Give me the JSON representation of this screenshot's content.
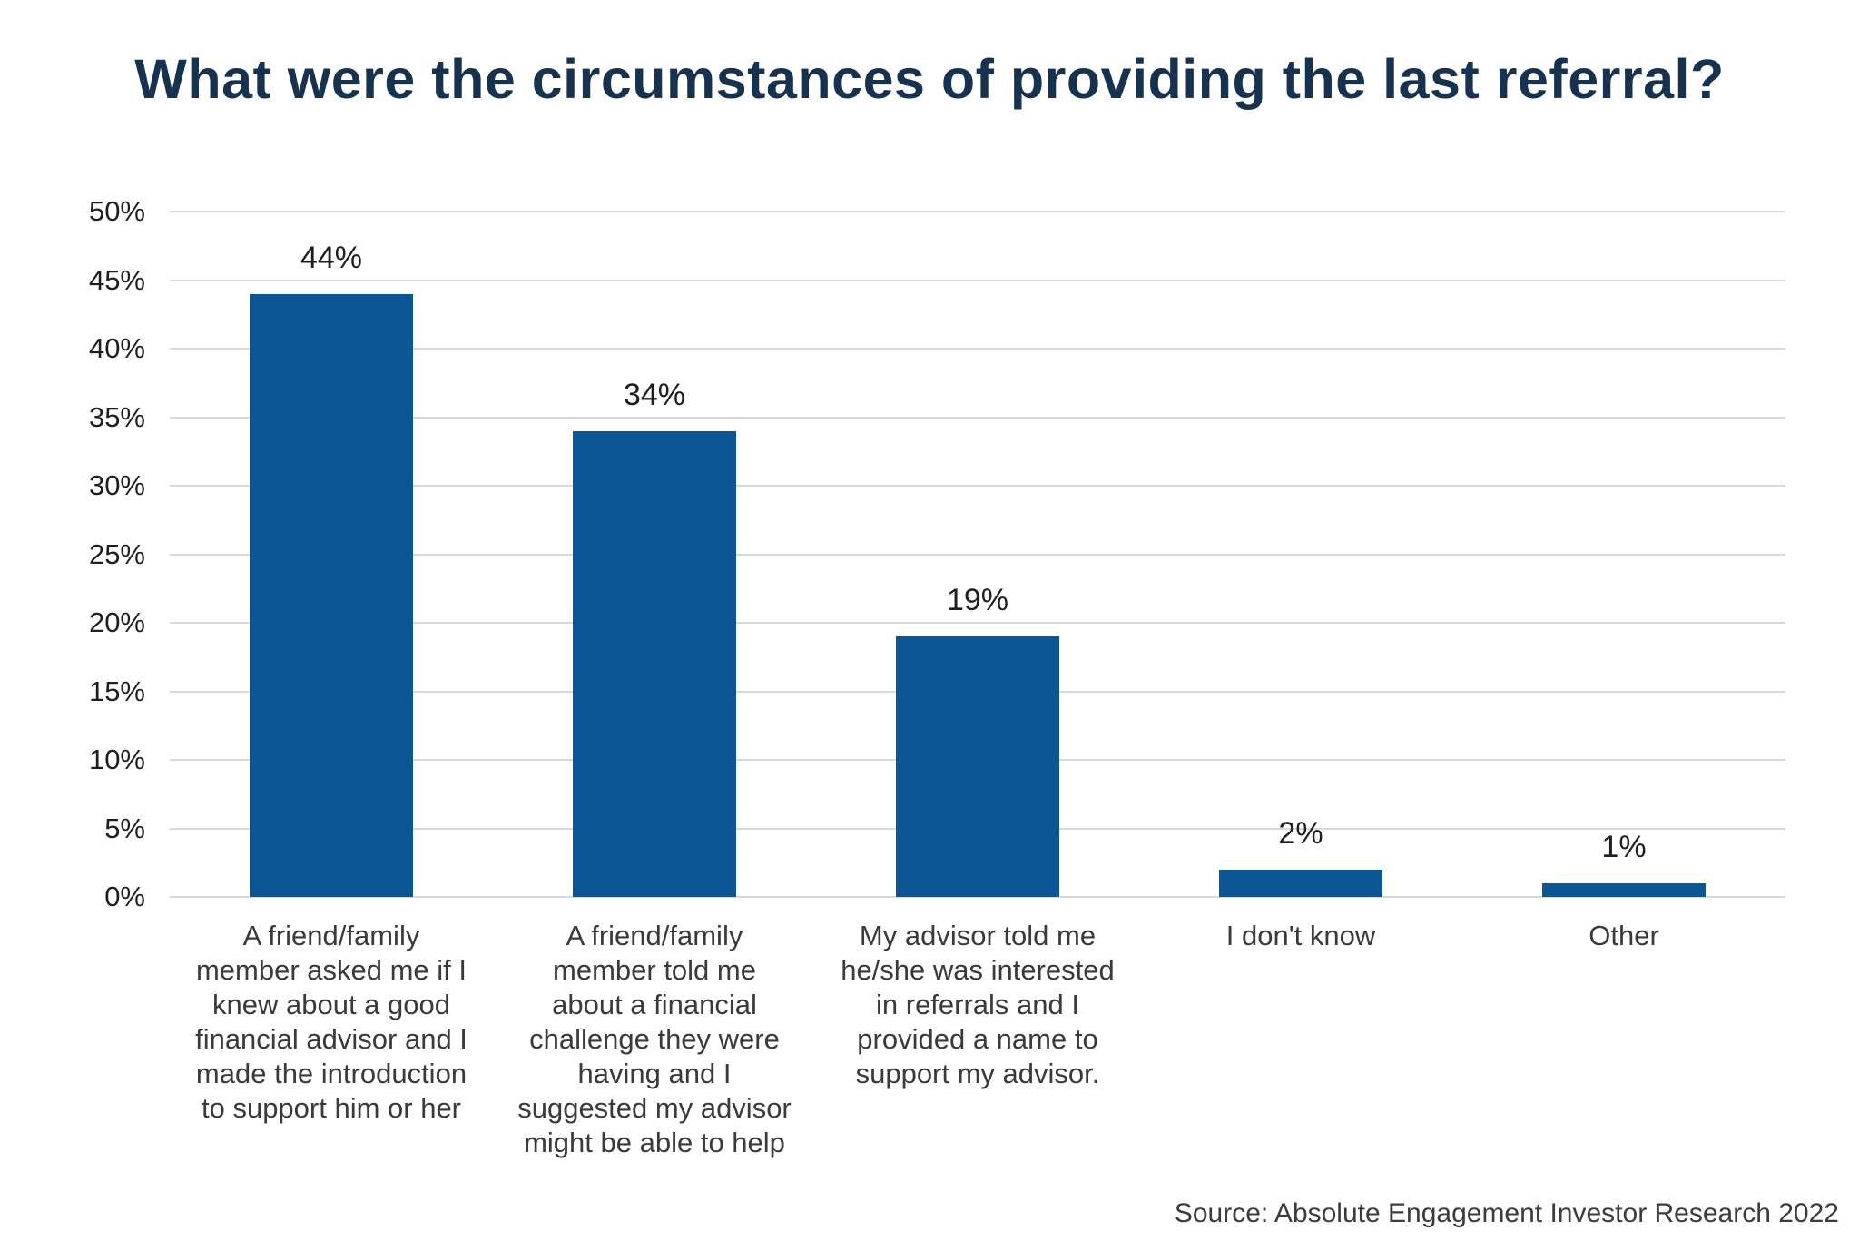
{
  "title": "What were the circumstances of providing the last referral?",
  "source": "Source: Absolute Engagement Investor Research 2022",
  "colors": {
    "bar": "#0B5694",
    "title_text": "#17324F",
    "gridline": "#D9D9D9",
    "axis_text": "#1E1E1E",
    "value_label_text": "#1E1E1E",
    "category_text": "#3A3A3A",
    "source_text": "#3C3C3C",
    "background": "#FFFFFF"
  },
  "chart_data": {
    "type": "bar",
    "title": "What were the circumstances of providing the last referral?",
    "categories": [
      "A friend/family\nmember asked me if I\nknew about a good\nfinancial advisor and I\nmade the introduction\nto support him or her",
      "A friend/family\nmember told me\nabout a financial\nchallenge they were\nhaving and I\nsuggested my advisor\nmight be able to help",
      "My advisor told me\nhe/she was interested\nin referrals and I\nprovided a name to\nsupport my advisor.",
      "I don't know",
      "Other"
    ],
    "values": [
      44,
      34,
      19,
      2,
      1
    ],
    "value_labels": [
      "44%",
      "34%",
      "19%",
      "2%",
      "1%"
    ],
    "xlabel": "",
    "ylabel": "",
    "ylim": [
      0,
      50
    ],
    "ytick_step": 5,
    "ytick_labels": [
      "0%",
      "5%",
      "10%",
      "15%",
      "20%",
      "25%",
      "30%",
      "35%",
      "40%",
      "45%",
      "50%"
    ],
    "grid": "horizontal gridlines on",
    "legend": "none",
    "source": "Source: Absolute Engagement Investor Research 2022"
  }
}
